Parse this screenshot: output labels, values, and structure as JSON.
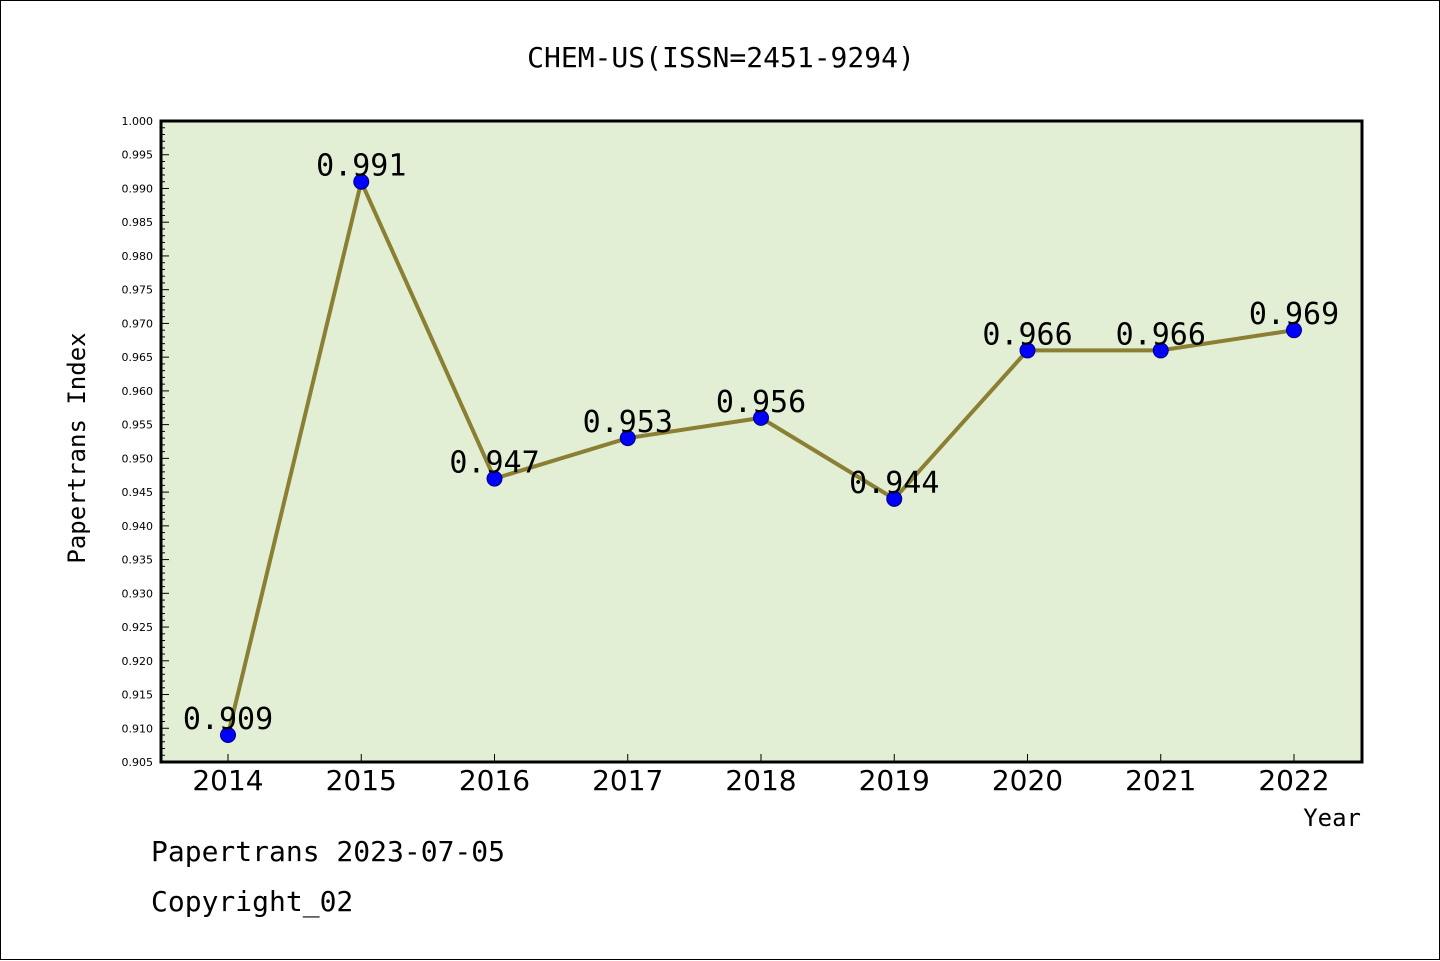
{
  "chart_data": {
    "type": "line",
    "title": "CHEM-US(ISSN=2451-9294)",
    "xlabel": "Year",
    "ylabel": "Papertrans Index",
    "categories": [
      "2014",
      "2015",
      "2016",
      "2017",
      "2018",
      "2019",
      "2020",
      "2021",
      "2022"
    ],
    "series": [
      {
        "values": [
          0.909,
          0.991,
          0.947,
          0.953,
          0.956,
          0.944,
          0.966,
          0.966,
          0.969
        ]
      }
    ],
    "data_labels": [
      "0.909",
      "0.991",
      "0.947",
      "0.953",
      "0.956",
      "0.944",
      "0.966",
      "0.966",
      "0.969"
    ],
    "ylim": [
      0.905,
      1.0
    ],
    "yticks": [
      "0.905",
      "0.910",
      "0.915",
      "0.920",
      "0.925",
      "0.930",
      "0.935",
      "0.940",
      "0.945",
      "0.950",
      "0.955",
      "0.960",
      "0.965",
      "0.970",
      "0.975",
      "0.980",
      "0.985",
      "0.990",
      "0.995",
      "1.000"
    ],
    "grid": false,
    "legend": "none",
    "colors": {
      "plot_background": "#e2efd5",
      "line": "#8b7f33",
      "marker": "#0000ff",
      "frame": "#000000"
    }
  },
  "footer": {
    "source": "Papertrans 2023-07-05",
    "copyright": "Copyright_02"
  }
}
